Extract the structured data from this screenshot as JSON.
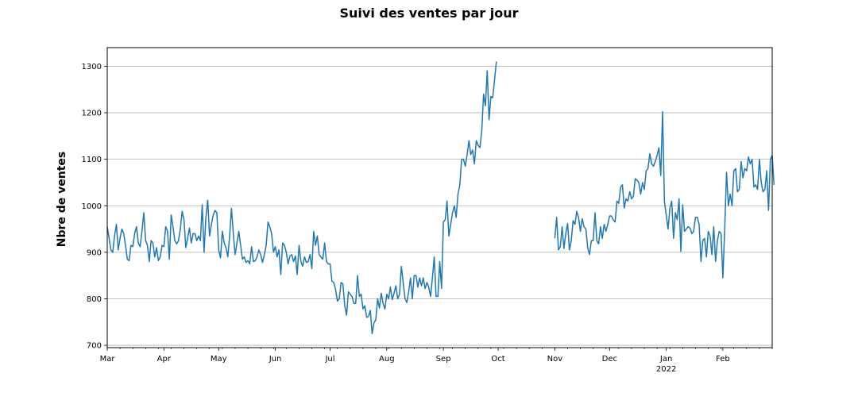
{
  "chart_data": {
    "type": "line",
    "title": "Suivi des ventes par jour",
    "xlabel": "",
    "ylabel": "Nbre de ventes",
    "xlim": [
      "2021-03-01",
      "2022-02-28"
    ],
    "ylim": [
      695,
      1340
    ],
    "grid": "horizontal",
    "color": "#1f77b4",
    "y_ticks": [
      700,
      800,
      900,
      1000,
      1100,
      1200,
      1300
    ],
    "x_ticks": [
      {
        "date": "2021-03-01",
        "label": "Mar",
        "sub": ""
      },
      {
        "date": "2021-04-01",
        "label": "Apr",
        "sub": ""
      },
      {
        "date": "2021-05-01",
        "label": "May",
        "sub": ""
      },
      {
        "date": "2021-06-01",
        "label": "Jun",
        "sub": ""
      },
      {
        "date": "2021-07-01",
        "label": "Jul",
        "sub": ""
      },
      {
        "date": "2021-08-01",
        "label": "Aug",
        "sub": ""
      },
      {
        "date": "2021-09-01",
        "label": "Sep",
        "sub": ""
      },
      {
        "date": "2021-10-01",
        "label": "Oct",
        "sub": ""
      },
      {
        "date": "2021-11-01",
        "label": "Nov",
        "sub": ""
      },
      {
        "date": "2021-12-01",
        "label": "Dec",
        "sub": ""
      },
      {
        "date": "2022-01-01",
        "label": "Jan",
        "sub": "2022"
      },
      {
        "date": "2022-02-01",
        "label": "Feb",
        "sub": ""
      }
    ],
    "series": [
      {
        "name": "",
        "start": "2021-03-01",
        "values": [
          955,
          930,
          905,
          900,
          935,
          960,
          905,
          930,
          950,
          940,
          915,
          885,
          882,
          915,
          912,
          940,
          955,
          920,
          912,
          945,
          985,
          925,
          915,
          880,
          925,
          920,
          890,
          910,
          882,
          890,
          915,
          912,
          955,
          945,
          885,
          980,
          955,
          925,
          918,
          925,
          950,
          988,
          970,
          910,
          930,
          952,
          920,
          940,
          940,
          925,
          935,
          925,
          1002,
          900,
          975,
          1012,
          935,
          960,
          980,
          990,
          985,
          905,
          888,
          945,
          920,
          910,
          890,
          935,
          995,
          940,
          895,
          920,
          945,
          915,
          885,
          890,
          878,
          882,
          875,
          912,
          880,
          882,
          890,
          905,
          895,
          878,
          895,
          915,
          965,
          955,
          940,
          900,
          912,
          890,
          905,
          852,
          920,
          915,
          900,
          875,
          892,
          895,
          880,
          892,
          852,
          915,
          880,
          870,
          890,
          878,
          880,
          895,
          865,
          945,
          915,
          935,
          895,
          890,
          885,
          920,
          880,
          875,
          875,
          838,
          835,
          820,
          795,
          800,
          835,
          832,
          785,
          765,
          815,
          810,
          805,
          790,
          790,
          850,
          805,
          810,
          778,
          785,
          760,
          762,
          775,
          725,
          748,
          755,
          800,
          780,
          812,
          790,
          778,
          810,
          800,
          825,
          798,
          812,
          828,
          800,
          810,
          870,
          835,
          800,
          792,
          815,
          845,
          800,
          850,
          850,
          825,
          845,
          828,
          845,
          822,
          835,
          825,
          805,
          845,
          890,
          805,
          805,
          880,
          822,
          965,
          970,
          1010,
          935,
          960,
          985,
          1000,
          975,
          1025,
          1045,
          1100,
          1100,
          1085,
          1110,
          1140,
          1110,
          1120,
          1090,
          1140,
          1130,
          1125,
          1160,
          1240,
          1215,
          1290,
          1185,
          1235,
          1232,
          1270,
          1310
        ]
      },
      {
        "name": "",
        "start": "2021-11-01",
        "values": [
          930,
          975,
          905,
          912,
          955,
          908,
          940,
          962,
          905,
          925,
          968,
          960,
          988,
          975,
          945,
          972,
          955,
          950,
          910,
          895,
          925,
          925,
          985,
          925,
          918,
          955,
          930,
          960,
          945,
          960,
          978,
          978,
          970,
          965,
          1010,
          1005,
          1040,
          1045,
          995,
          1015,
          1010,
          1030,
          1015,
          1020,
          1058,
          1055,
          1050,
          1025,
          1050,
          1035,
          1075,
          1080,
          1112,
          1090,
          1085,
          1095,
          1108,
          1125,
          1065,
          1202,
          1010,
          980,
          950,
          995,
          1010,
          930,
          985,
          970,
          1015,
          902,
          1002,
          945,
          950,
          955,
          952,
          940,
          945,
          975,
          975,
          960,
          880,
          925,
          930,
          890,
          945,
          935,
          895,
          955,
          880,
          925,
          945,
          940,
          845,
          950,
          1072,
          1000,
          1025,
          1000,
          1075,
          1080,
          1030,
          1035,
          1095,
          1060,
          1080,
          1075,
          1105,
          1090,
          1100,
          1040,
          1045,
          1035,
          1100,
          1050,
          1030,
          1035,
          1075,
          990,
          1100,
          1108,
          1045
        ]
      }
    ]
  }
}
